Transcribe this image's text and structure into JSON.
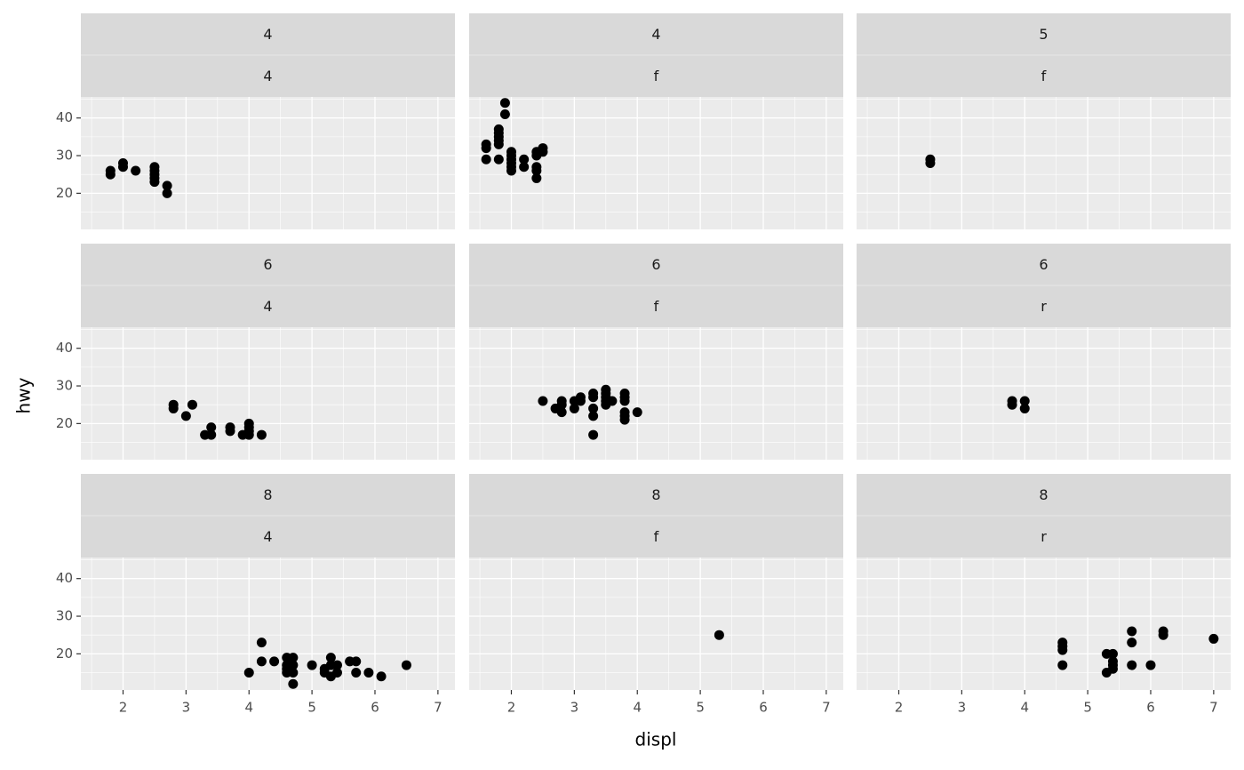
{
  "chart_data": {
    "type": "scatter",
    "x_label": "displ",
    "y_label": "hwy",
    "color": "#000000",
    "grid": true,
    "xlim": [
      1.33,
      7.27
    ],
    "ylim": [
      10.4,
      45.6
    ],
    "xticks": [
      2,
      3,
      4,
      5,
      6,
      7
    ],
    "yticks": [
      20,
      30,
      40
    ],
    "x_minor_grid": [
      1.5,
      2.5,
      3.5,
      4.5,
      5.5,
      6.5
    ],
    "y_minor_grid": [
      15,
      25,
      35,
      45
    ],
    "panels": [
      {
        "strips": [
          "4",
          "4"
        ],
        "x": [
          1.8,
          1.8,
          2,
          2,
          2.2,
          2.5,
          2.5,
          2.5,
          2.5,
          2.5,
          2.7,
          2.7
        ],
        "y": [
          25,
          26,
          27,
          28,
          26,
          27,
          26,
          25,
          24,
          23,
          22,
          20
        ]
      },
      {
        "strips": [
          "4",
          "f"
        ],
        "x": [
          1.6,
          1.6,
          1.6,
          1.8,
          1.8,
          1.8,
          1.8,
          1.8,
          1.8,
          1.9,
          1.9,
          2,
          2,
          2,
          2,
          2,
          2,
          2.2,
          2.2,
          2.4,
          2.4,
          2.4,
          2.4,
          2.4,
          2.5,
          2.5
        ],
        "y": [
          33,
          32,
          29,
          37,
          36,
          35,
          34,
          33,
          29,
          44,
          41,
          31,
          30,
          29,
          28,
          27,
          26,
          29,
          27,
          31,
          30,
          27,
          26,
          24,
          32,
          31
        ]
      },
      {
        "strips": [
          "5",
          "f"
        ],
        "x": [
          2.5,
          2.5
        ],
        "y": [
          29,
          28
        ]
      },
      {
        "strips": [
          "6",
          "4"
        ],
        "x": [
          2.8,
          2.8,
          3.1,
          3,
          3.3,
          3.4,
          3.4,
          3.7,
          3.7,
          3.9,
          4,
          4,
          4,
          4,
          4.2
        ],
        "y": [
          25,
          24,
          25,
          22,
          17,
          19,
          17,
          19,
          18,
          17,
          20,
          19,
          18,
          17,
          17
        ]
      },
      {
        "strips": [
          "6",
          "f"
        ],
        "x": [
          2.5,
          2.7,
          2.8,
          2.8,
          2.8,
          3,
          3,
          3.1,
          3.1,
          3.3,
          3.3,
          3.3,
          3.3,
          3.3,
          3.5,
          3.5,
          3.5,
          3.5,
          3.5,
          3.6,
          3.8,
          3.8,
          3.8,
          3.8,
          3.8,
          3.8,
          4
        ],
        "y": [
          26,
          24,
          26,
          25,
          23,
          26,
          24,
          27,
          26,
          28,
          27,
          24,
          22,
          17,
          29,
          28,
          27,
          26,
          25,
          26,
          28,
          27,
          26,
          23,
          22,
          21,
          23
        ]
      },
      {
        "strips": [
          "6",
          "r"
        ],
        "x": [
          3.8,
          3.8,
          4,
          4
        ],
        "y": [
          26,
          25,
          26,
          24
        ]
      },
      {
        "strips": [
          "8",
          "4"
        ],
        "x": [
          4,
          4.2,
          4.2,
          4.4,
          4.6,
          4.6,
          4.6,
          4.6,
          4.7,
          4.7,
          4.7,
          4.7,
          5,
          5.2,
          5.2,
          5.3,
          5.3,
          5.3,
          5.4,
          5.4,
          5.6,
          5.7,
          5.7,
          5.9,
          6.1,
          6.5
        ],
        "y": [
          15,
          23,
          18,
          18,
          19,
          17,
          16,
          15,
          19,
          17,
          15,
          12,
          17,
          16,
          15,
          19,
          17,
          14,
          17,
          15,
          18,
          18,
          15,
          15,
          14,
          17
        ]
      },
      {
        "strips": [
          "8",
          "f"
        ],
        "x": [
          5.3
        ],
        "y": [
          25
        ]
      },
      {
        "strips": [
          "8",
          "r"
        ],
        "x": [
          4.6,
          4.6,
          4.6,
          4.6,
          5.3,
          5.3,
          5.4,
          5.4,
          5.4,
          5.4,
          5.7,
          5.7,
          5.7,
          6,
          6.2,
          6.2,
          7
        ],
        "y": [
          23,
          22,
          21,
          17,
          20,
          15,
          20,
          18,
          17,
          16,
          26,
          23,
          17,
          17,
          26,
          25,
          24
        ]
      }
    ]
  }
}
